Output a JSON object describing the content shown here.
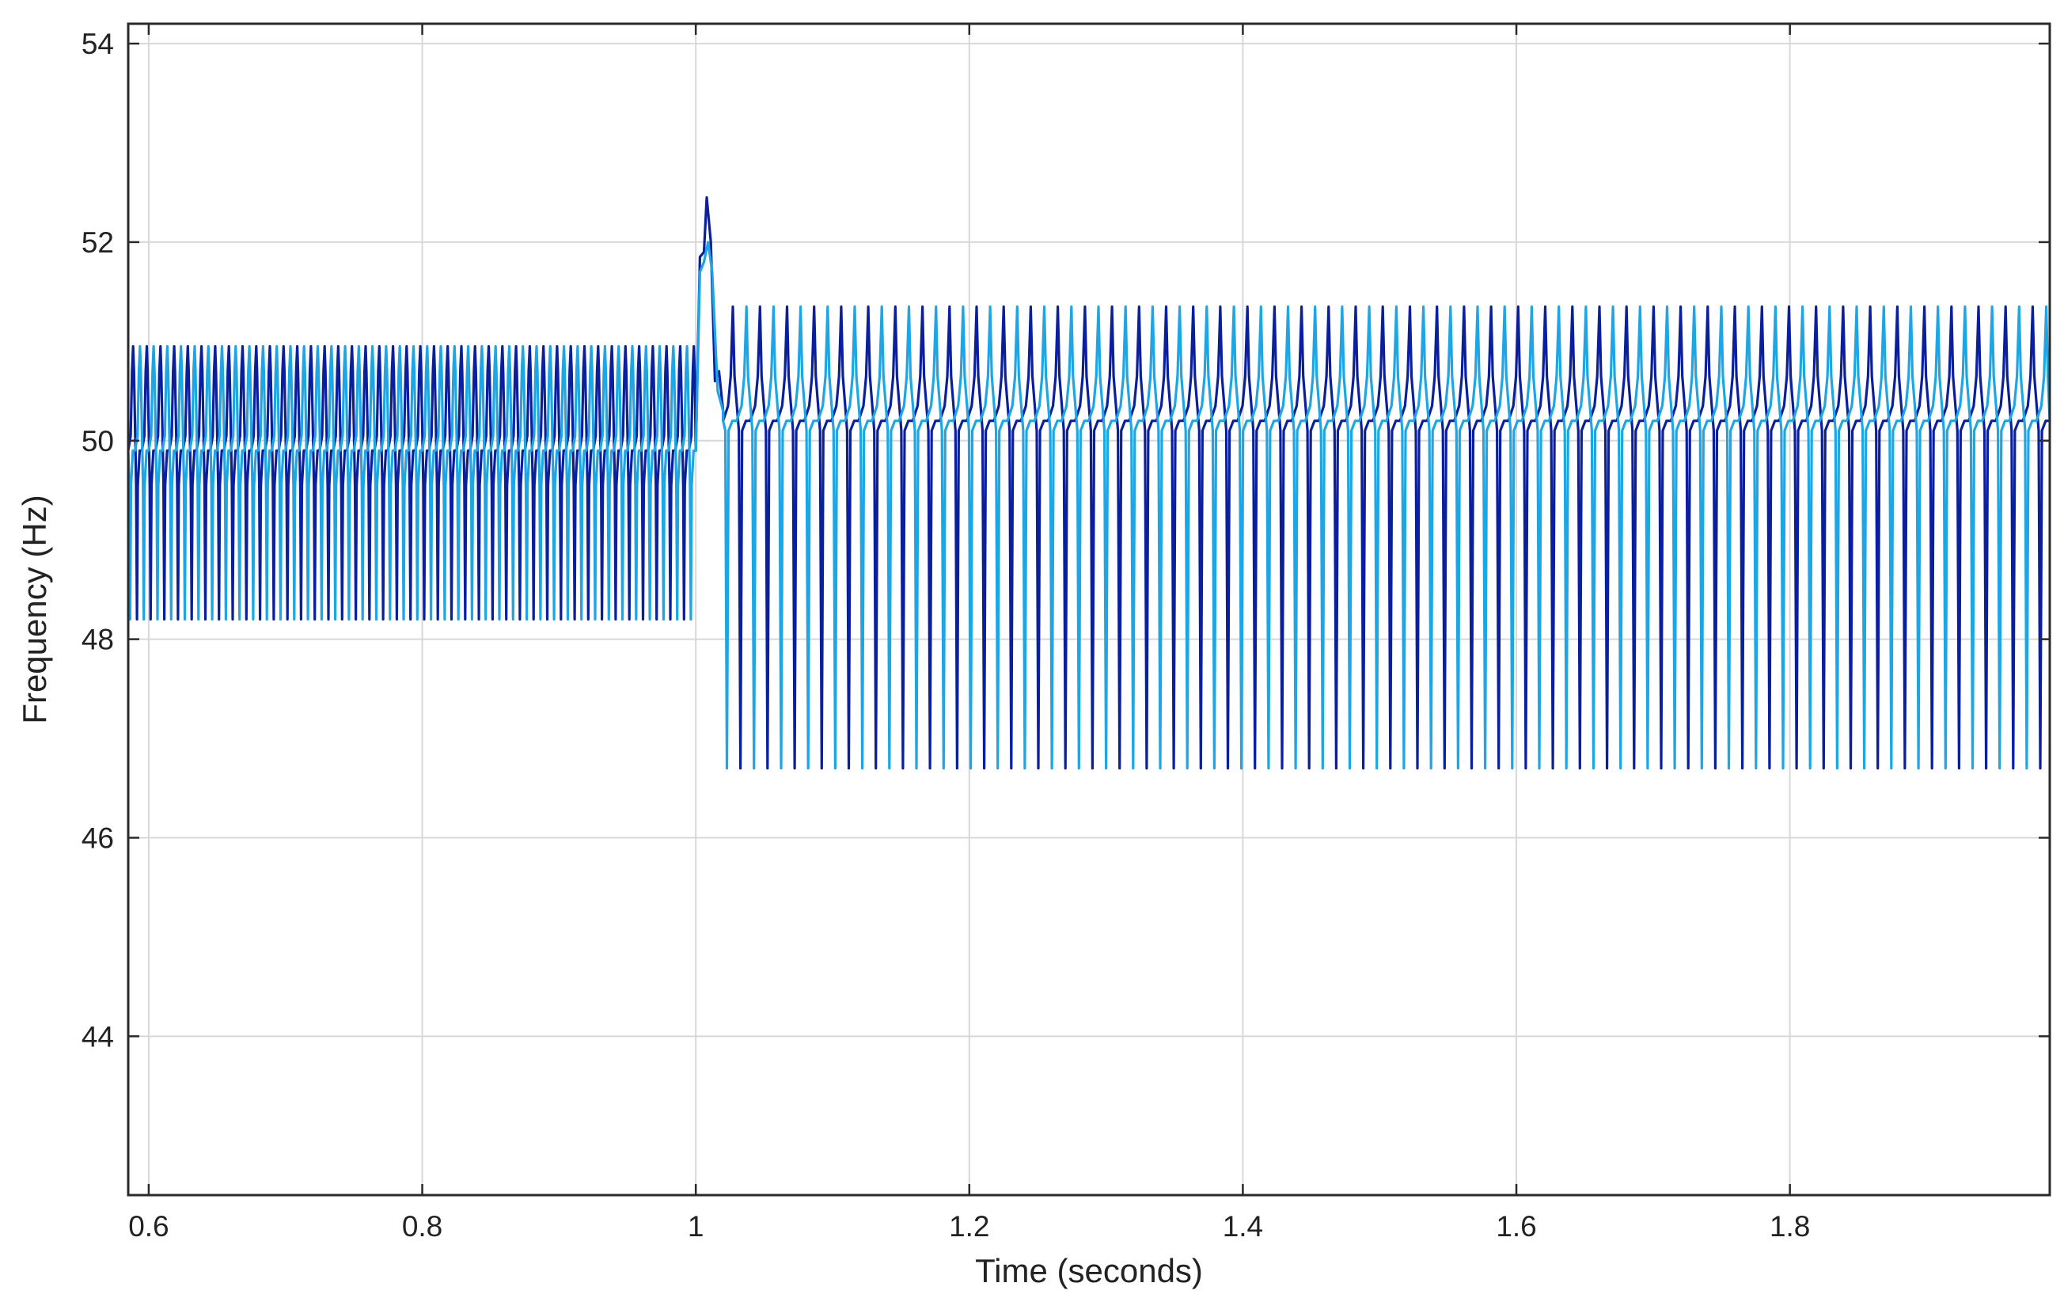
{
  "chart_data": {
    "type": "line",
    "title": "",
    "xlabel": "Time (seconds)",
    "ylabel": "Frequency (Hz)",
    "xlim": [
      0.585,
      1.99
    ],
    "ylim": [
      42.4,
      54.2
    ],
    "xticks": [
      0.6,
      0.8,
      1,
      1.2,
      1.4,
      1.6,
      1.8
    ],
    "xtick_labels": [
      "0.6",
      "0.8",
      "1",
      "1.2",
      "1.4",
      "1.6",
      "1.8"
    ],
    "yticks": [
      44,
      46,
      48,
      50,
      52,
      54
    ],
    "ytick_labels": [
      "44",
      "46",
      "48",
      "50",
      "52",
      "54"
    ],
    "grid": true,
    "legend": "none",
    "series": [
      {
        "color": "#0a1f9e",
        "segments": [
          {
            "t_start": 0.585,
            "t_end": 1.0,
            "period": 0.01,
            "phase": 0.0,
            "baseline": 49.9,
            "high": 50.95,
            "plateau": 50.7,
            "low": 48.2,
            "dip": 49.55
          },
          {
            "transient_t": [
              1.0,
              1.003,
              1.006,
              1.008,
              1.011,
              1.014,
              1.017,
              1.02
            ],
            "transient_f": [
              49.9,
              51.85,
              51.9,
              52.45,
              52.0,
              50.6,
              50.7,
              50.3
            ]
          },
          {
            "t_start": 1.02,
            "t_end": 1.99,
            "period": 0.0198,
            "phase": 0.0,
            "baseline": 50.2,
            "high": 51.35,
            "plateau": 50.65,
            "low": 46.7,
            "dip": 50.1
          }
        ]
      },
      {
        "color": "#1da6e6",
        "segments": [
          {
            "t_start": 0.585,
            "t_end": 1.0,
            "period": 0.01,
            "phase": 0.005,
            "baseline": 49.9,
            "high": 50.95,
            "plateau": 50.7,
            "low": 48.2,
            "dip": 49.55
          },
          {
            "transient_t": [
              1.0,
              1.003,
              1.006,
              1.009,
              1.012,
              1.016,
              1.02
            ],
            "transient_f": [
              49.9,
              51.7,
              51.8,
              52.0,
              51.7,
              50.5,
              50.3
            ]
          },
          {
            "t_start": 1.02,
            "t_end": 1.99,
            "period": 0.0198,
            "phase": 0.0099,
            "baseline": 50.2,
            "high": 51.35,
            "plateau": 50.65,
            "low": 46.7,
            "dip": 50.1
          }
        ]
      }
    ]
  }
}
